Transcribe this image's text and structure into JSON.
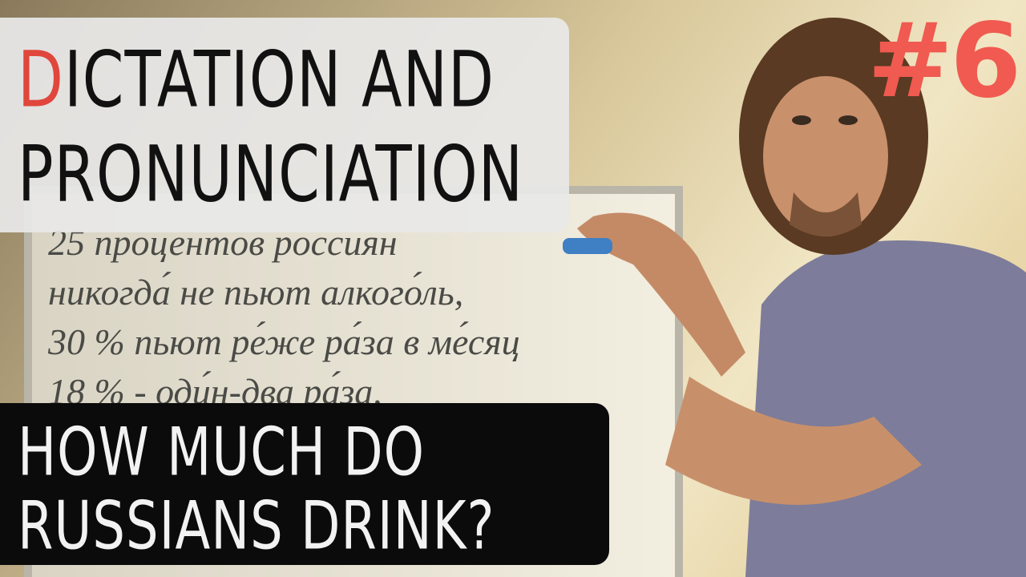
{
  "thumbnail": {
    "title": {
      "lines": [
        "DICTATION AND",
        "PRONUNCIATION"
      ]
    },
    "episode": "#6",
    "subtitle": {
      "lines": [
        "HOW MUCH DO",
        "RUSSIANS DRINK?"
      ]
    },
    "whiteboard": {
      "lines": [
        "25 процентов россиян",
        "никогда́ не пьют алкого́ль,",
        "30 % пьют ре́же ра́за в ме́сяц",
        "18 % - оди́н-два ра́за,"
      ]
    }
  }
}
